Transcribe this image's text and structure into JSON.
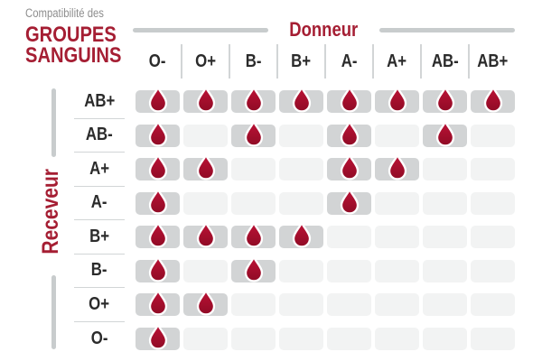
{
  "title": {
    "eyebrow": "Compatibilité des",
    "line1": "GROUPES",
    "line2": "SANGUINS"
  },
  "axes": {
    "donor_label": "Donneur",
    "receiver_label": "Receveur"
  },
  "chart_data": {
    "type": "heatmap",
    "title": "Compatibilité des GROUPES SANGUINS",
    "x_axis_label": "Donneur",
    "y_axis_label": "Receveur",
    "columns": [
      "O-",
      "O+",
      "B-",
      "B+",
      "A-",
      "A+",
      "AB-",
      "AB+"
    ],
    "rows": [
      "AB+",
      "AB-",
      "A+",
      "A-",
      "B+",
      "B-",
      "O+",
      "O-"
    ],
    "matrix": [
      [
        1,
        1,
        1,
        1,
        1,
        1,
        1,
        1
      ],
      [
        1,
        0,
        1,
        0,
        1,
        0,
        1,
        0
      ],
      [
        1,
        1,
        0,
        0,
        1,
        1,
        0,
        0
      ],
      [
        1,
        0,
        0,
        0,
        1,
        0,
        0,
        0
      ],
      [
        1,
        1,
        1,
        1,
        0,
        0,
        0,
        0
      ],
      [
        1,
        0,
        1,
        0,
        0,
        0,
        0,
        0
      ],
      [
        1,
        1,
        0,
        0,
        0,
        0,
        0,
        0
      ],
      [
        1,
        0,
        0,
        0,
        0,
        0,
        0,
        0
      ]
    ],
    "compatible_marker": "blood-drop-icon",
    "incompatible_marker": "empty-cell",
    "legend_position": "none",
    "grid": false
  },
  "colors": {
    "accent_red": "#a51e33",
    "drop_red_top": "#bd1236",
    "drop_red_bottom": "#8f0b25",
    "cell_filled": "#d2d4d5",
    "cell_empty": "#f2f3f3",
    "bar_gray": "#c8cccd",
    "divider_gray": "#d2d5d6",
    "text_dark": "#2b2b2b",
    "eyebrow_gray": "#8e8e8e"
  }
}
